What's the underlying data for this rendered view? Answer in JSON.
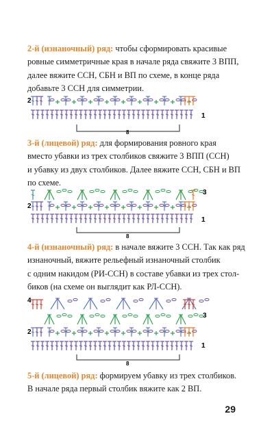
{
  "paragraphs": [
    {
      "highlight": "2-й (изнаночный) ряд:",
      "lines": [
        " чтобы сформировать красивые",
        "ровные симметричные края в начале ряда свяжите 3 ВПП,",
        "далее вяжите ССН, СБН и ВП по схеме, в конце ряда",
        "добавьте 3 ССН для симметрии."
      ]
    },
    {
      "highlight": "3-й (лицевой) ряд:",
      "lines": [
        " для формирования ровного края",
        "вместо убавки из трех столбиков свяжите 3 ВПП (ССН)",
        "и убавку из двух столбиков. Далее вяжите ССН, СБН и ВП",
        "по схеме."
      ]
    },
    {
      "highlight": "4-й (изнаночный) ряд:",
      "lines": [
        " в начале вяжите 3 ССН. Так как ряд",
        "изнаночный, вяжите рельефный изнаночный столбик",
        "с одним накидом (РИ-ССН) в составе убавки из трех стол-",
        "биков (на схеме он выглядит как РЛ-ССН)."
      ]
    },
    {
      "highlight": "5-й (лицевой) ряд:",
      "lines": [
        " формируем убавку из трех столбиков.",
        "В начале ряда первый столбик вяжите как 2 ВП."
      ]
    }
  ],
  "diagram1": {
    "row_left": "2",
    "row_right": "1",
    "repeat": "8"
  },
  "diagram2": {
    "row_left": "2",
    "row_right_top": "3",
    "row_right_bottom": "1",
    "repeat": "8"
  },
  "diagram3": {
    "row_left_top": "4",
    "row_left_bottom": "2",
    "row_right_top": "3",
    "row_right_bottom": "1",
    "repeat": "8"
  },
  "colors": {
    "highlight": "#e3862c",
    "orange": "#e8742a",
    "green": "#2f9e50",
    "purple": "#6a4fa5",
    "blue": "#5a79c4",
    "red": "#d63a2f",
    "teal": "#3a8fa0"
  },
  "page_number": "29"
}
